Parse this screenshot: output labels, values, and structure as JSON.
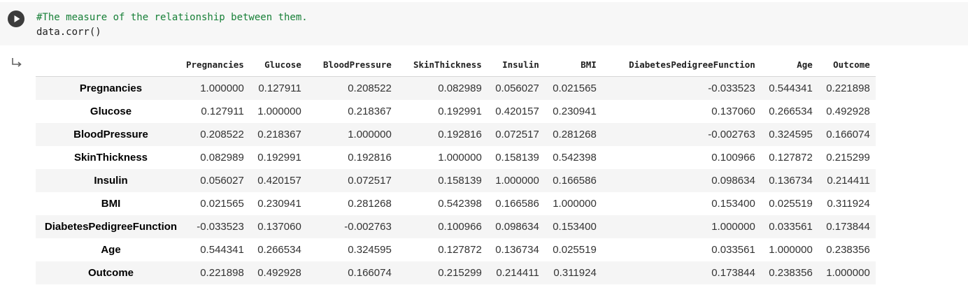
{
  "cell": {
    "comment": "#The measure of the relationship between them.",
    "code": "data.corr()"
  },
  "icons": {
    "run": "play-icon",
    "output": "output-arrow-icon"
  },
  "colors": {
    "comment": "#188038",
    "cell_background": "#f7f7f7",
    "row_stripe": "#f5f5f5"
  },
  "table": {
    "columns": [
      "Pregnancies",
      "Glucose",
      "BloodPressure",
      "SkinThickness",
      "Insulin",
      "BMI",
      "DiabetesPedigreeFunction",
      "Age",
      "Outcome"
    ],
    "rows": [
      {
        "label": "Pregnancies",
        "values": [
          "1.000000",
          "0.127911",
          "0.208522",
          "0.082989",
          "0.056027",
          "0.021565",
          "-0.033523",
          "0.544341",
          "0.221898"
        ]
      },
      {
        "label": "Glucose",
        "values": [
          "0.127911",
          "1.000000",
          "0.218367",
          "0.192991",
          "0.420157",
          "0.230941",
          "0.137060",
          "0.266534",
          "0.492928"
        ]
      },
      {
        "label": "BloodPressure",
        "values": [
          "0.208522",
          "0.218367",
          "1.000000",
          "0.192816",
          "0.072517",
          "0.281268",
          "-0.002763",
          "0.324595",
          "0.166074"
        ]
      },
      {
        "label": "SkinThickness",
        "values": [
          "0.082989",
          "0.192991",
          "0.192816",
          "1.000000",
          "0.158139",
          "0.542398",
          "0.100966",
          "0.127872",
          "0.215299"
        ]
      },
      {
        "label": "Insulin",
        "values": [
          "0.056027",
          "0.420157",
          "0.072517",
          "0.158139",
          "1.000000",
          "0.166586",
          "0.098634",
          "0.136734",
          "0.214411"
        ]
      },
      {
        "label": "BMI",
        "values": [
          "0.021565",
          "0.230941",
          "0.281268",
          "0.542398",
          "0.166586",
          "1.000000",
          "0.153400",
          "0.025519",
          "0.311924"
        ]
      },
      {
        "label": "DiabetesPedigreeFunction",
        "values": [
          "-0.033523",
          "0.137060",
          "-0.002763",
          "0.100966",
          "0.098634",
          "0.153400",
          "1.000000",
          "0.033561",
          "0.173844"
        ]
      },
      {
        "label": "Age",
        "values": [
          "0.544341",
          "0.266534",
          "0.324595",
          "0.127872",
          "0.136734",
          "0.025519",
          "0.033561",
          "1.000000",
          "0.238356"
        ]
      },
      {
        "label": "Outcome",
        "values": [
          "0.221898",
          "0.492928",
          "0.166074",
          "0.215299",
          "0.214411",
          "0.311924",
          "0.173844",
          "0.238356",
          "1.000000"
        ]
      }
    ]
  }
}
